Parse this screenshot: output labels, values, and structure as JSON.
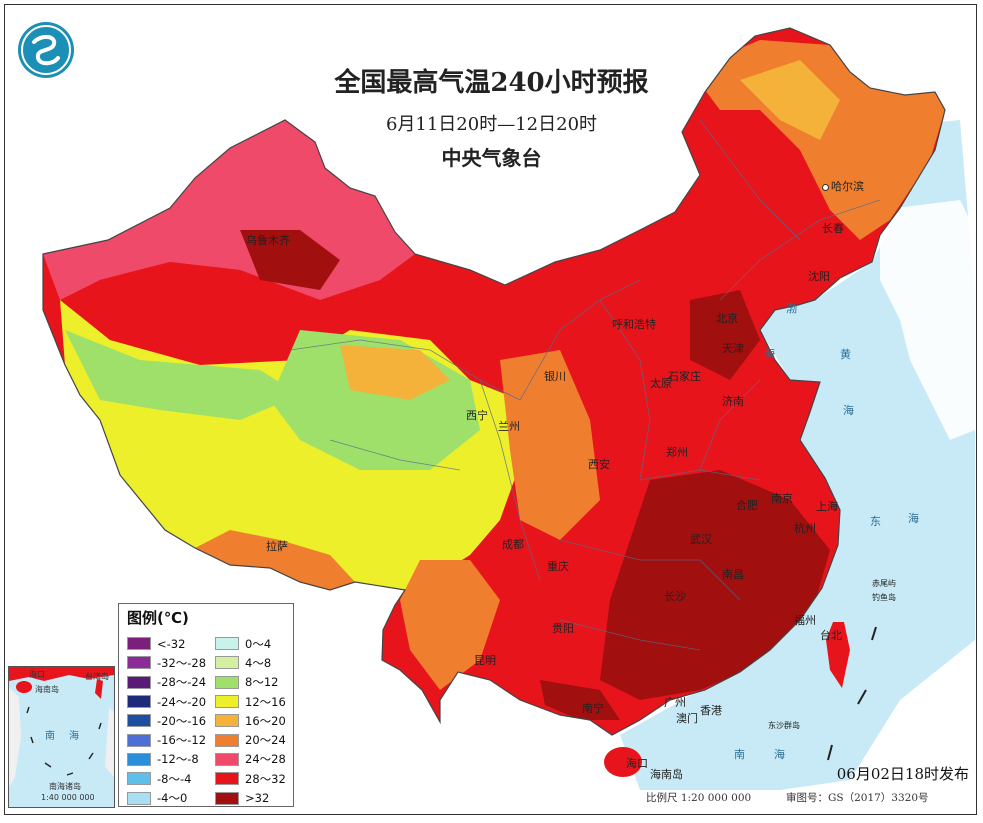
{
  "header": {
    "title": "全国最高气温240小时预报",
    "period": "6月11日20时—12日20时",
    "agency": "中央气象台"
  },
  "legend": {
    "title": "图例(℃)",
    "left_items": [
      {
        "label": "<-32",
        "color": "#7a1f7a"
      },
      {
        "label": "-32～-28",
        "color": "#8c2a9a"
      },
      {
        "label": "-28～-24",
        "color": "#5a1a78"
      },
      {
        "label": "-24～-20",
        "color": "#1e2a7a"
      },
      {
        "label": "-20～-16",
        "color": "#1d4ea0"
      },
      {
        "label": "-16～-12",
        "color": "#4f6fd8"
      },
      {
        "label": "-12～-8",
        "color": "#2a8fd8"
      },
      {
        "label": "-8～-4",
        "color": "#5cc0ea"
      },
      {
        "label": "-4～0",
        "color": "#a9dff2"
      }
    ],
    "right_items": [
      {
        "label": "0～4",
        "color": "#c8f3ec"
      },
      {
        "label": "4～8",
        "color": "#d2f0a0"
      },
      {
        "label": "8～12",
        "color": "#9fe06a"
      },
      {
        "label": "12～16",
        "color": "#ecef2a"
      },
      {
        "label": "16～20",
        "color": "#f4b23a"
      },
      {
        "label": "20～24",
        "color": "#ef7f2e"
      },
      {
        "label": "24～28",
        "color": "#ef4a6a"
      },
      {
        "label": "28～32",
        "color": "#e8141c"
      },
      {
        "label": ">32",
        "color": "#a10f0f"
      }
    ]
  },
  "cities": [
    {
      "name": "乌鲁木齐"
    },
    {
      "name": "哈尔滨"
    },
    {
      "name": "长春"
    },
    {
      "name": "沈阳"
    },
    {
      "name": "北京"
    },
    {
      "name": "天津"
    },
    {
      "name": "呼和浩特"
    },
    {
      "name": "太原"
    },
    {
      "name": "石家庄"
    },
    {
      "name": "济南"
    },
    {
      "name": "银川"
    },
    {
      "name": "西宁"
    },
    {
      "name": "兰州"
    },
    {
      "name": "西安"
    },
    {
      "name": "郑州"
    },
    {
      "name": "合肥"
    },
    {
      "name": "南京"
    },
    {
      "name": "上海"
    },
    {
      "name": "杭州"
    },
    {
      "name": "武汉"
    },
    {
      "name": "成都"
    },
    {
      "name": "重庆"
    },
    {
      "name": "长沙"
    },
    {
      "name": "南昌"
    },
    {
      "name": "贵阳"
    },
    {
      "name": "昆明"
    },
    {
      "name": "拉萨"
    },
    {
      "name": "福州"
    },
    {
      "name": "台北"
    },
    {
      "name": "南宁"
    },
    {
      "name": "广州"
    },
    {
      "name": "澳门"
    },
    {
      "name": "香港"
    },
    {
      "name": "海口"
    },
    {
      "name": "海南岛"
    }
  ],
  "seas": [
    "渤",
    "海",
    "黄",
    "海",
    "东",
    "海",
    "南",
    "海"
  ],
  "islands": [
    "赤尾屿",
    "钓鱼岛",
    "东沙群岛"
  ],
  "inset": {
    "labels": [
      "海口",
      "海南岛",
      "台湾岛",
      "南",
      "海",
      "南海诸岛"
    ],
    "scale": "1:40 000 000"
  },
  "publish_time": "06月02日18时发布",
  "scale_text": "比例尺 1:20 000 000",
  "map_review_no": "审图号：GS（2017）3320号"
}
